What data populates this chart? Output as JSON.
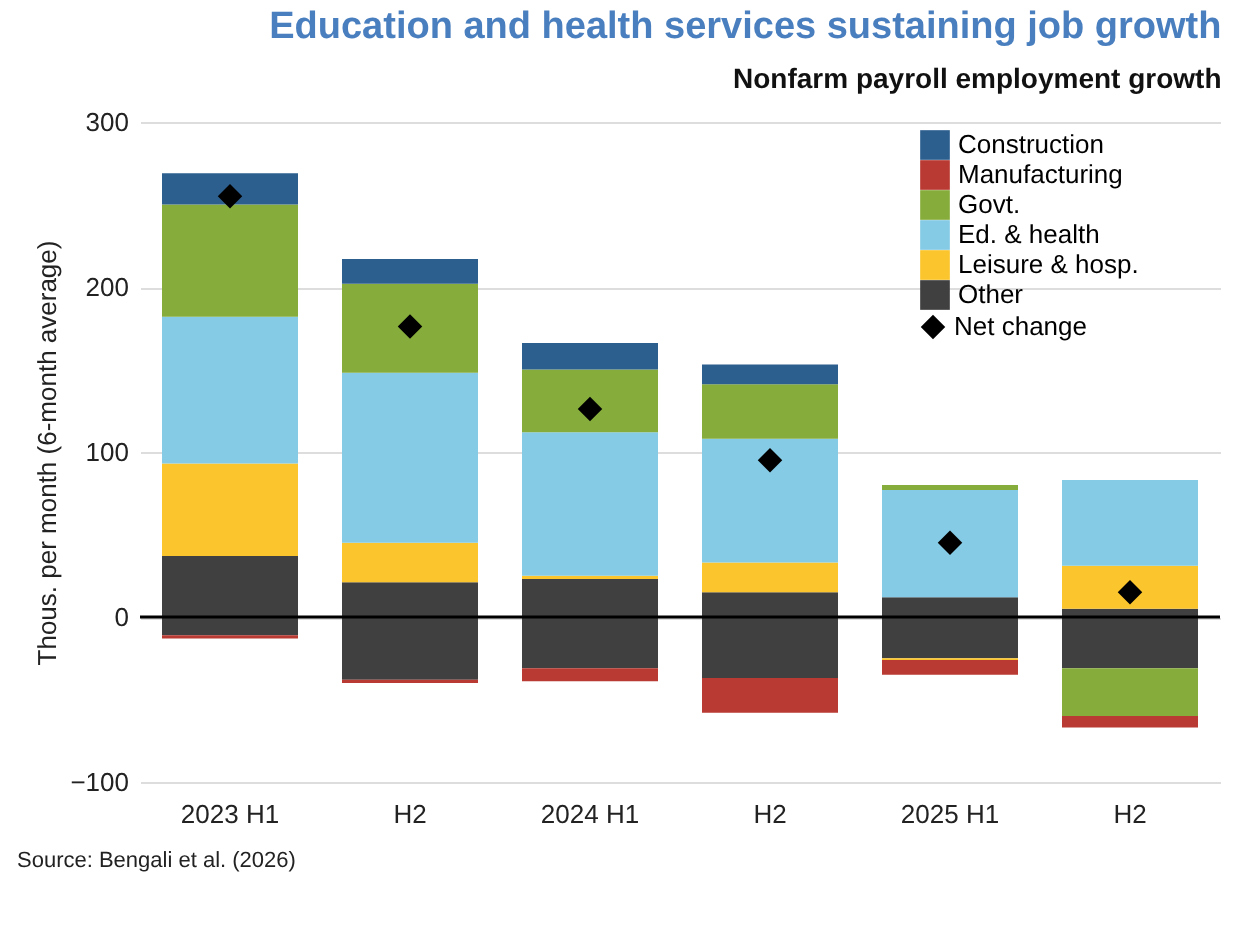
{
  "chart_data": {
    "type": "bar",
    "title": "Education and health services sustaining job growth",
    "subtitle": "Nonfarm payroll employment growth",
    "ylabel": "Thous. per month (6-month average)",
    "annotations": [
      "Source: Bengali et al. (2026)"
    ],
    "categories": [
      "2023 H1",
      "H2",
      "2024 H1",
      "H2",
      "2025 H1",
      "H2"
    ],
    "stacked": true,
    "series": [
      {
        "name": "Other",
        "color": "#404040",
        "values": [
          37,
          21,
          23,
          15,
          12,
          5
        ]
      },
      {
        "color": "#404040",
        "values": [
          -11,
          -38,
          -31,
          -37,
          -25,
          -31
        ]
      },
      {
        "name": "Leisure & hosp.",
        "color": "#fbc52d",
        "values": [
          56,
          24,
          2,
          18,
          -1,
          26
        ]
      },
      {
        "name": "Ed. & health",
        "color": "#85cbe5",
        "values": [
          89,
          103,
          87,
          75,
          65,
          52
        ]
      },
      {
        "name": "Govt.",
        "color": "#86ad3c",
        "values": [
          68,
          54,
          38,
          33,
          3,
          -29
        ]
      },
      {
        "name": "Manufacturing",
        "color": "#b83a32",
        "values": [
          -2,
          -2,
          -8,
          -21,
          -9,
          -7
        ]
      },
      {
        "name": "Construction",
        "color": "#2d5f8e",
        "values": [
          19,
          15,
          16,
          12,
          0,
          0
        ]
      },
      {
        "name": "Net change",
        "type": "scatter",
        "marker": "diamond",
        "color": "#000000",
        "values": [
          255,
          176,
          126,
          95,
          45,
          15
        ]
      }
    ],
    "ylim": [
      -100,
      300
    ],
    "yticks": [
      -100,
      0,
      100,
      200,
      300
    ],
    "grid": "y",
    "legend": "top right",
    "ref_lines": [
      {
        "axis": "y",
        "value": 0,
        "color": "#000000"
      }
    ]
  }
}
